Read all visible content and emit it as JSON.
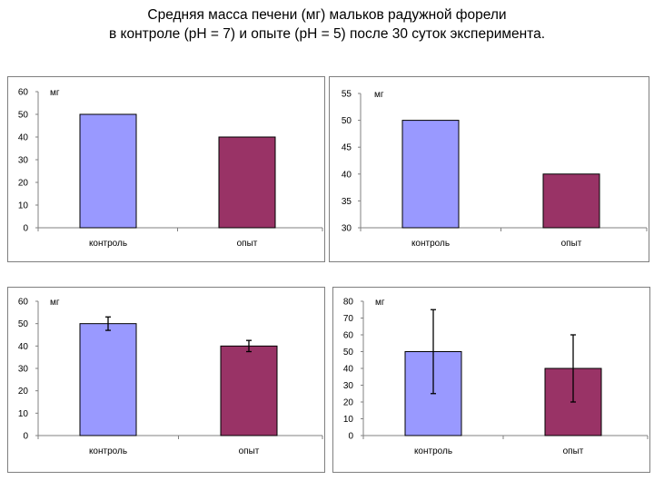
{
  "title": {
    "line1": "Средняя масса печени (мг) мальков радужной форели",
    "line2": "в контроле (pH = 7) и опыте (pH = 5) после 30 суток эксперимента."
  },
  "colors": {
    "control": "#9999ff",
    "experiment": "#993366",
    "axis": "#808080",
    "border": "#7f7f7f"
  },
  "chart_data": [
    {
      "type": "bar",
      "unit_label": "мг",
      "categories": [
        "контроль",
        "опыт"
      ],
      "values": [
        50,
        40
      ],
      "ylim": [
        0,
        60
      ],
      "yticks": [
        0,
        10,
        20,
        30,
        40,
        50,
        60
      ],
      "error_bars": null
    },
    {
      "type": "bar",
      "unit_label": "мг",
      "categories": [
        "контроль",
        "опыт"
      ],
      "values": [
        50,
        40
      ],
      "ylim": [
        30,
        55
      ],
      "yticks": [
        30,
        35,
        40,
        45,
        50,
        55
      ],
      "error_bars": null
    },
    {
      "type": "bar",
      "unit_label": "мг",
      "categories": [
        "контроль",
        "опыт"
      ],
      "values": [
        50,
        40
      ],
      "ylim": [
        0,
        60
      ],
      "yticks": [
        0,
        10,
        20,
        30,
        40,
        50,
        60
      ],
      "error_bars": [
        3,
        2.5
      ]
    },
    {
      "type": "bar",
      "unit_label": "мг",
      "categories": [
        "контроль",
        "опыт"
      ],
      "values": [
        50,
        40
      ],
      "ylim": [
        0,
        80
      ],
      "yticks": [
        0,
        10,
        20,
        30,
        40,
        50,
        60,
        70,
        80
      ],
      "error_bars": [
        25,
        20
      ]
    }
  ]
}
